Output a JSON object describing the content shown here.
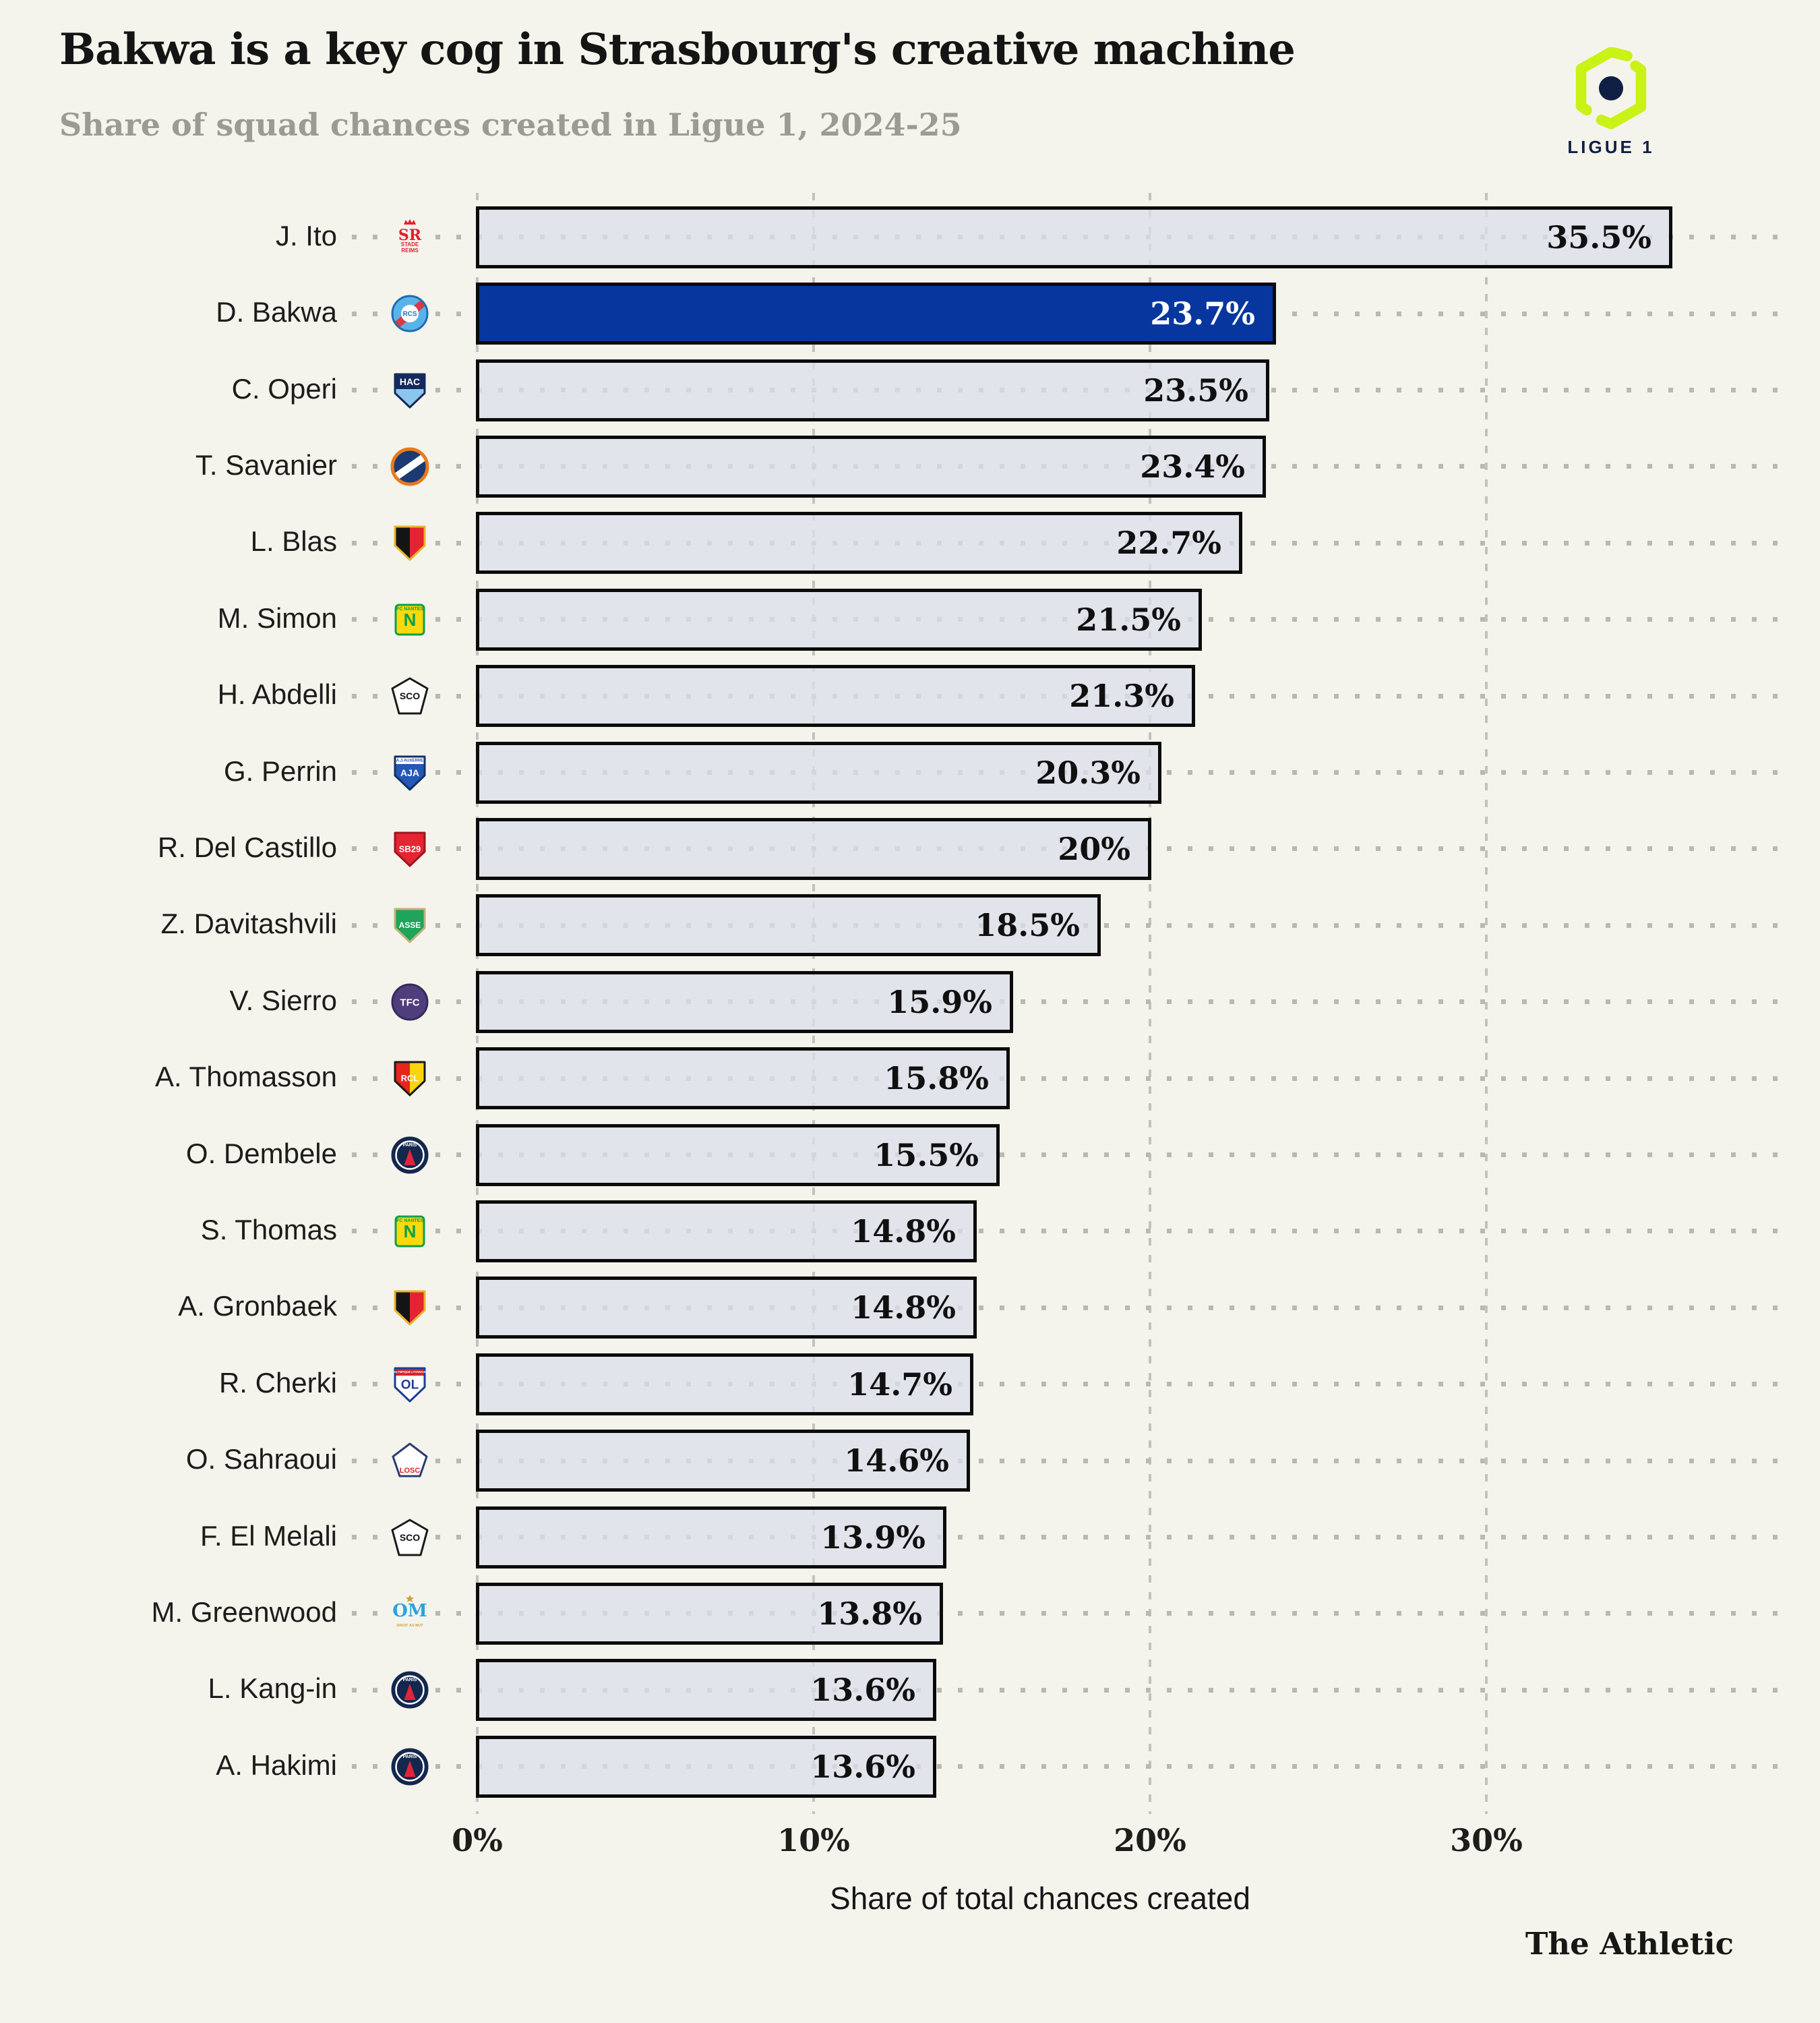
{
  "page": {
    "background": "#f4f4ec"
  },
  "header": {
    "title": "Bakwa is a key cog in Strasbourg's creative machine",
    "subtitle": "Share of squad chances created in Ligue 1, 2024-25",
    "league_badge": {
      "label": "LIGUE 1",
      "green": "#c9f216",
      "navy": "#101f44"
    }
  },
  "chart_data": {
    "type": "bar",
    "orientation": "horizontal",
    "title": "Bakwa is a key cog in Strasbourg's creative machine",
    "xlabel": "Share of total chances created",
    "ylabel": "",
    "xlim": [
      0,
      39
    ],
    "grid": "dashed-vertical-gridlines",
    "x_ticks": [
      {
        "label": "0%",
        "value": 0
      },
      {
        "label": "10%",
        "value": 10
      },
      {
        "label": "20%",
        "value": 20
      },
      {
        "label": "30%",
        "value": 30
      }
    ],
    "bar_fill": "#dbdfe9",
    "bar_border": "#0b0b0b",
    "highlight_fill": "#07379e",
    "highlight_player": "D. Bakwa",
    "value_label_color": "#101010",
    "highlight_value_label_color": "#ffffff",
    "leader_dot_color": "#b7b9b3",
    "players": [
      {
        "name": "J. Ito",
        "club": "Stade de Reims",
        "badge": "reims",
        "value": 35.5,
        "label": "35.5%"
      },
      {
        "name": "D. Bakwa",
        "club": "RC Strasbourg",
        "badge": "strasbourg",
        "value": 23.7,
        "label": "23.7%",
        "highlight": true
      },
      {
        "name": "C. Operi",
        "club": "Le Havre AC",
        "badge": "lehavre",
        "value": 23.5,
        "label": "23.5%"
      },
      {
        "name": "T. Savanier",
        "club": "Montpellier HSC",
        "badge": "montpellier",
        "value": 23.4,
        "label": "23.4%"
      },
      {
        "name": "L. Blas",
        "club": "Stade Rennais",
        "badge": "rennes",
        "value": 22.7,
        "label": "22.7%"
      },
      {
        "name": "M. Simon",
        "club": "FC Nantes",
        "badge": "nantes",
        "value": 21.5,
        "label": "21.5%"
      },
      {
        "name": "H. Abdelli",
        "club": "Angers SCO",
        "badge": "angers",
        "value": 21.3,
        "label": "21.3%"
      },
      {
        "name": "G. Perrin",
        "club": "AJ Auxerre",
        "badge": "auxerre",
        "value": 20.3,
        "label": "20.3%"
      },
      {
        "name": "R. Del Castillo",
        "club": "Stade Brestois 29",
        "badge": "brest",
        "value": 20,
        "label": "20%"
      },
      {
        "name": "Z. Davitashvili",
        "club": "AS Saint-Étienne",
        "badge": "saintetienne",
        "value": 18.5,
        "label": "18.5%"
      },
      {
        "name": "V. Sierro",
        "club": "Toulouse FC",
        "badge": "toulouse",
        "value": 15.9,
        "label": "15.9%"
      },
      {
        "name": "A. Thomasson",
        "club": "RC Lens",
        "badge": "lens",
        "value": 15.8,
        "label": "15.8%"
      },
      {
        "name": "O. Dembele",
        "club": "Paris Saint-Germain",
        "badge": "psg",
        "value": 15.5,
        "label": "15.5%"
      },
      {
        "name": "S. Thomas",
        "club": "FC Nantes",
        "badge": "nantes",
        "value": 14.8,
        "label": "14.8%"
      },
      {
        "name": "A. Gronbaek",
        "club": "Stade Rennais",
        "badge": "rennes",
        "value": 14.8,
        "label": "14.8%"
      },
      {
        "name": "R. Cherki",
        "club": "Olympique Lyonnais",
        "badge": "lyon",
        "value": 14.7,
        "label": "14.7%"
      },
      {
        "name": "O. Sahraoui",
        "club": "LOSC Lille",
        "badge": "lille",
        "value": 14.6,
        "label": "14.6%"
      },
      {
        "name": "F. El Melali",
        "club": "Angers SCO",
        "badge": "angers",
        "value": 13.9,
        "label": "13.9%"
      },
      {
        "name": "M. Greenwood",
        "club": "Olympique de Marseille",
        "badge": "marseille",
        "value": 13.8,
        "label": "13.8%"
      },
      {
        "name": "L. Kang-in",
        "club": "Paris Saint-Germain",
        "badge": "psg",
        "value": 13.6,
        "label": "13.6%"
      },
      {
        "name": "A. Hakimi",
        "club": "Paris Saint-Germain",
        "badge": "psg",
        "value": 13.6,
        "label": "13.6%"
      }
    ],
    "badges": {
      "reims": {
        "shape": "text",
        "mono": "SR",
        "monoColor": "#e31e2d",
        "monoSize": 22,
        "serif": true,
        "crown": "#e31e2d",
        "captions": [
          {
            "text": "STADE",
            "y": 43,
            "size": 8,
            "color": "#e31e2d"
          },
          {
            "text": "REIMS",
            "y": 52,
            "size": 8,
            "color": "#e31e2d"
          }
        ]
      },
      "strasbourg": {
        "shape": "circle",
        "bg": "#5ab3e8",
        "stroke": "#1f6cb0",
        "band": "#d93a45",
        "bandRotate": -40,
        "innerCircle": "#ffffff",
        "mono": "RCS",
        "monoColor": "#2a6db8",
        "monoSize": 10
      },
      "lehavre": {
        "shape": "shield",
        "bg": "#8cc6ee",
        "bg2": "#142a5c",
        "split": "v",
        "stroke": "#142a5c",
        "mono": "HAC",
        "monoColor": "#ffffff",
        "monoSize": 14,
        "monoY": "top"
      },
      "montpellier": {
        "shape": "circle",
        "bg": "#1b3a74",
        "stroke": "#e87a1e",
        "strokeWidth": 5,
        "band": "#ffffff",
        "bandRotate": -35
      },
      "rennes": {
        "shape": "shield",
        "bg": "#141414",
        "bg2": "#e52430",
        "split": "h",
        "stroke": "#e8b42a"
      },
      "nantes": {
        "shape": "rect",
        "bg": "#fcd90c",
        "stroke": "#0aa04c",
        "mono": "N",
        "monoColor": "#0aa04c",
        "monoSize": 26,
        "captions": [
          {
            "text": "FC NANTES",
            "y": 16,
            "size": 7,
            "color": "#0aa04c"
          }
        ]
      },
      "angers": {
        "shape": "diamond",
        "bg": "#ffffff",
        "stroke": "#1a1a1a",
        "mono": "SCO",
        "monoColor": "#111111",
        "monoSize": 14
      },
      "auxerre": {
        "shape": "shield",
        "bg": "#2458b4",
        "stroke": "#123068",
        "topBand": "#ffffff",
        "captions": [
          {
            "text": "A.J.AUXERRE",
            "y": 13.5,
            "size": 6,
            "color": "#2458b4"
          }
        ],
        "mono": "AJA",
        "monoColor": "#ffffff",
        "monoSize": 14
      },
      "brest": {
        "shape": "shield",
        "bg": "#e52532",
        "stroke": "#9e1520",
        "mono": "SB29",
        "monoColor": "#ffffff",
        "monoSize": 13
      },
      "saintetienne": {
        "shape": "shield",
        "bg": "#1fa45b",
        "stroke": "#c5b07c",
        "mono": "ASSE",
        "monoColor": "#ffffff",
        "monoSize": 12
      },
      "toulouse": {
        "shape": "circle",
        "bg": "#4f3d7d",
        "stroke": "#352a58",
        "mono": "TFC",
        "monoColor": "#ffffff",
        "monoSize": 15
      },
      "lens": {
        "shape": "shield",
        "bg": "#e6251c",
        "bg2": "#fcd40e",
        "split": "h",
        "stroke": "#1a1a1a",
        "mono": "RCL",
        "monoColor": "#ffffff",
        "monoSize": 13
      },
      "psg": {
        "shape": "circle",
        "bg": "#14274e",
        "stroke": "#14274e",
        "ring": "#ffffff",
        "triangle": "#e0253b",
        "mono": "PARIS",
        "monoColor": "#ffffff",
        "monoSize": 7,
        "monoY": "top"
      },
      "lyon": {
        "shape": "shield",
        "bg": "#ffffff",
        "stroke": "#1c3f94",
        "topBand": "#d8232a",
        "captions": [
          {
            "text": "OLYMPIQUE LYONNAIS",
            "y": 13,
            "size": 4.2,
            "color": "#ffffff"
          }
        ],
        "mono": "OL",
        "monoColor": "#1c3f94",
        "monoSize": 19
      },
      "lille": {
        "shape": "pentagon",
        "bg": "#ffffff",
        "stroke": "#2b3c72",
        "mono": "LOSC",
        "monoColor": "#d8262e",
        "monoSize": 11,
        "monoY": "bottom"
      },
      "marseille": {
        "shape": "text",
        "mono": "OM",
        "monoColor": "#2ba3dc",
        "monoSize": 26,
        "serif": true,
        "star": "#c9a23f",
        "captions": [
          {
            "text": "DROIT AU BUT",
            "y": 49,
            "size": 5.5,
            "color": "#c9a23f"
          }
        ]
      }
    }
  },
  "footer": {
    "brand": "The Athletic"
  }
}
